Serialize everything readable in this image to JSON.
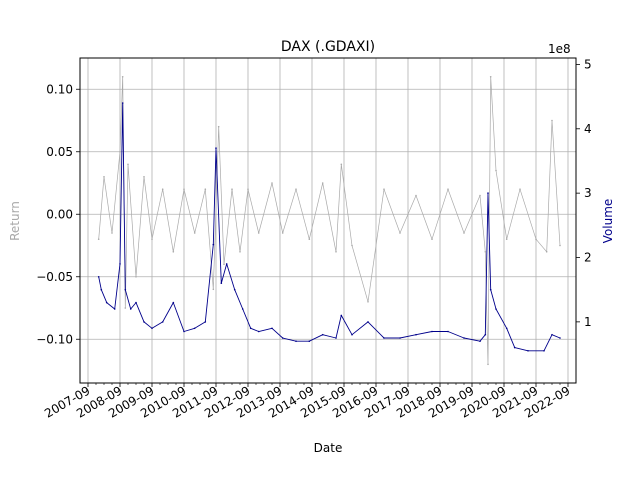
{
  "chart_data": {
    "type": "line",
    "title": "DAX (.GDAXI)",
    "xlabel": "Date",
    "ylabel_left": "Return",
    "ylabel_right": "Volume",
    "right_axis_multiplier": "1e8",
    "grid": true,
    "xlim": [
      "2007-06-01",
      "2022-12-01"
    ],
    "ylim_left": [
      -0.135,
      0.125
    ],
    "ylim_right": [
      0.05,
      5.1
    ],
    "x_ticks": [
      "2007-09",
      "2008-09",
      "2009-09",
      "2010-09",
      "2011-09",
      "2012-09",
      "2013-09",
      "2014-09",
      "2015-09",
      "2016-09",
      "2017-09",
      "2018-09",
      "2019-09",
      "2020-09",
      "2021-09",
      "2022-09"
    ],
    "y_ticks_left": [
      -0.1,
      -0.05,
      0.0,
      0.05,
      0.1
    ],
    "y_tick_labels_left": [
      "−0.10",
      "−0.05",
      "0.00",
      "0.05",
      "0.10"
    ],
    "y_ticks_right": [
      1,
      2,
      3,
      4,
      5
    ],
    "y_tick_labels_right": [
      "1",
      "2",
      "3",
      "4",
      "5"
    ],
    "colors": {
      "return": "#a9a9a9",
      "volume": "#00008b",
      "grid": "#b0b0b0",
      "axis": "#000000"
    },
    "series": [
      {
        "name": "Return",
        "axis": "left",
        "x": [
          "2008-01",
          "2008-03",
          "2008-06",
          "2008-09",
          "2008-10",
          "2008-11",
          "2008-12",
          "2009-03",
          "2009-06",
          "2009-09",
          "2010-01",
          "2010-05",
          "2010-09",
          "2011-01",
          "2011-05",
          "2011-08",
          "2011-10",
          "2011-12",
          "2012-03",
          "2012-06",
          "2012-09",
          "2013-01",
          "2013-06",
          "2013-10",
          "2014-03",
          "2014-08",
          "2015-01",
          "2015-06",
          "2015-08",
          "2015-12",
          "2016-06",
          "2016-12",
          "2017-06",
          "2017-12",
          "2018-06",
          "2018-12",
          "2019-06",
          "2019-12",
          "2020-02",
          "2020-03",
          "2020-04",
          "2020-06",
          "2020-10",
          "2021-03",
          "2021-09",
          "2022-01",
          "2022-03",
          "2022-06"
        ],
        "values": [
          -0.02,
          0.03,
          -0.015,
          0.05,
          0.11,
          -0.075,
          0.04,
          -0.05,
          0.03,
          -0.02,
          0.02,
          -0.03,
          0.02,
          -0.015,
          0.02,
          -0.06,
          0.07,
          -0.04,
          0.02,
          -0.03,
          0.02,
          -0.015,
          0.025,
          -0.015,
          0.02,
          -0.02,
          0.025,
          -0.03,
          0.04,
          -0.025,
          -0.07,
          0.02,
          -0.015,
          0.015,
          -0.02,
          0.02,
          -0.015,
          0.015,
          -0.03,
          -0.12,
          0.11,
          0.035,
          -0.02,
          0.02,
          -0.02,
          -0.03,
          0.075,
          -0.025
        ]
      },
      {
        "name": "Volume",
        "axis": "right",
        "x": [
          "2008-01",
          "2008-02",
          "2008-04",
          "2008-07",
          "2008-09",
          "2008-10",
          "2008-11",
          "2009-01",
          "2009-03",
          "2009-06",
          "2009-09",
          "2010-01",
          "2010-05",
          "2010-09",
          "2011-01",
          "2011-05",
          "2011-08",
          "2011-09",
          "2011-11",
          "2012-01",
          "2012-04",
          "2012-07",
          "2012-10",
          "2013-01",
          "2013-06",
          "2013-10",
          "2014-03",
          "2014-08",
          "2015-01",
          "2015-06",
          "2015-08",
          "2015-12",
          "2016-06",
          "2016-12",
          "2017-06",
          "2017-12",
          "2018-06",
          "2018-12",
          "2019-06",
          "2019-12",
          "2020-02",
          "2020-03",
          "2020-04",
          "2020-06",
          "2020-10",
          "2021-01",
          "2021-06",
          "2021-12",
          "2022-03",
          "2022-06"
        ],
        "values": [
          1.7,
          1.5,
          1.3,
          1.2,
          1.9,
          4.4,
          1.5,
          1.2,
          1.3,
          1.0,
          0.9,
          1.0,
          1.3,
          0.85,
          0.9,
          1.0,
          2.2,
          3.7,
          1.6,
          1.9,
          1.5,
          1.2,
          0.9,
          0.85,
          0.9,
          0.75,
          0.7,
          0.7,
          0.8,
          0.75,
          1.1,
          0.8,
          1.0,
          0.75,
          0.75,
          0.8,
          0.85,
          0.85,
          0.75,
          0.7,
          0.8,
          3.0,
          1.5,
          1.2,
          0.9,
          0.6,
          0.55,
          0.55,
          0.8,
          0.75
        ]
      }
    ]
  }
}
